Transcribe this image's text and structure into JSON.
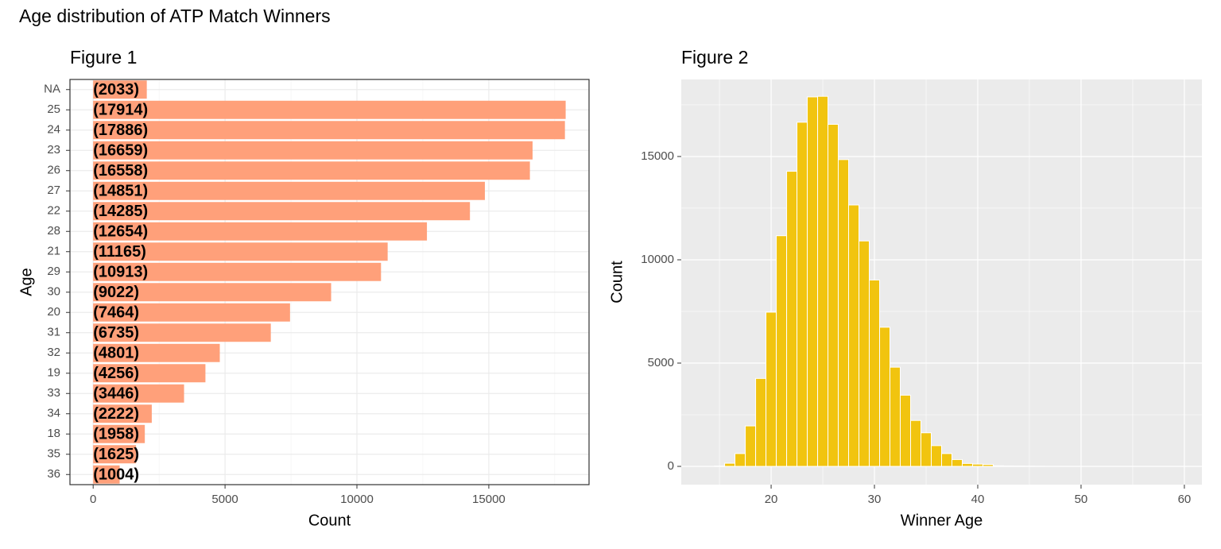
{
  "title": "Age distribution of ATP Match Winners",
  "chart_data": [
    {
      "type": "bar",
      "orientation": "horizontal",
      "title": "Figure 1",
      "x_label": "Count",
      "y_label": "Age",
      "categories": [
        "NA",
        "25",
        "24",
        "23",
        "26",
        "27",
        "22",
        "28",
        "21",
        "29",
        "30",
        "20",
        "31",
        "32",
        "19",
        "33",
        "34",
        "18",
        "35",
        "36"
      ],
      "values": [
        2033,
        17914,
        17886,
        16659,
        16558,
        14851,
        14285,
        12654,
        11165,
        10913,
        9022,
        7464,
        6735,
        4801,
        4256,
        3446,
        2222,
        1958,
        1625,
        1004
      ],
      "value_labels": [
        "(2033)",
        "(17914)",
        "(17886)",
        "(16659)",
        "(16558)",
        "(14851)",
        "(14285)",
        "(12654)",
        "(11165)",
        "(10913)",
        "(9022)",
        "(7464)",
        "(6735)",
        "(4801)",
        "(4256)",
        "(3446)",
        "(2222)",
        "(1958)",
        "(1625)",
        "(1004)"
      ],
      "color": "#FFA07A",
      "xlim": [
        -880,
        18800
      ],
      "xticks": [
        0,
        5000,
        10000,
        15000
      ],
      "minor_xticks": [
        2500,
        7500,
        12500,
        17500
      ],
      "grid": true
    },
    {
      "type": "histogram",
      "title": "Figure 2",
      "x_label": "Winner Age",
      "y_label": "Count",
      "bins": [
        14.5,
        15.5,
        16.5,
        17.5,
        18.5,
        19.5,
        20.5,
        21.5,
        22.5,
        23.5,
        24.5,
        25.5,
        26.5,
        27.5,
        28.5,
        29.5,
        30.5,
        31.5,
        32.5,
        33.5,
        34.5,
        35.5,
        36.5,
        37.5,
        38.5,
        39.5,
        40.5,
        41.5,
        42.5,
        43.5,
        44.5,
        45.5,
        46.5
      ],
      "counts": [
        15,
        150,
        620,
        1958,
        4256,
        7464,
        11165,
        14285,
        16659,
        17886,
        17914,
        16558,
        14851,
        12654,
        10913,
        9022,
        6735,
        4801,
        3446,
        2222,
        1625,
        1004,
        620,
        330,
        140,
        110,
        90,
        30,
        20,
        15,
        10,
        5
      ],
      "color": "#F1C40F",
      "xlim": [
        11.3,
        61.7
      ],
      "xticks": [
        20,
        30,
        40,
        50,
        60
      ],
      "minor_xticks": [
        15,
        25,
        35,
        45,
        55
      ],
      "ylim": [
        -885,
        18730
      ],
      "yticks": [
        0,
        5000,
        10000,
        15000
      ],
      "minor_yticks": [
        2500,
        7500,
        12500,
        17500
      ],
      "grid": true
    }
  ]
}
